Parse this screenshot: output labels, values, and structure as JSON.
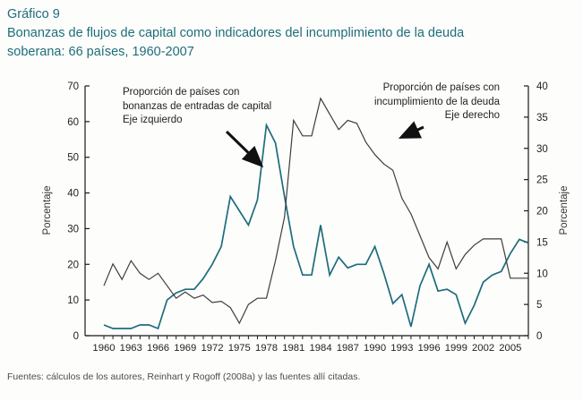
{
  "header": {
    "label": "Gráfico 9",
    "title_line1": "Bonanzas de flujos de capital como indicadores del incumplimiento de la deuda",
    "title_line2": "soberana: 66 países, 1960-2007"
  },
  "chart_data": {
    "type": "line",
    "title": "Bonanzas de flujos de capital como indicadores del incumplimiento de la deuda soberana: 66 países, 1960-2007",
    "grid": false,
    "legend_position": "annotations-with-arrows",
    "x": [
      1960,
      1961,
      1962,
      1963,
      1964,
      1965,
      1966,
      1967,
      1968,
      1969,
      1970,
      1971,
      1972,
      1973,
      1974,
      1975,
      1976,
      1977,
      1978,
      1979,
      1980,
      1981,
      1982,
      1983,
      1984,
      1985,
      1986,
      1987,
      1988,
      1989,
      1990,
      1991,
      1992,
      1993,
      1994,
      1995,
      1996,
      1997,
      1998,
      1999,
      2000,
      2001,
      2002,
      2003,
      2004,
      2005,
      2006,
      2007
    ],
    "x_tick_labels": [
      1960,
      1963,
      1966,
      1969,
      1972,
      1975,
      1978,
      1981,
      1984,
      1987,
      1990,
      1993,
      1996,
      1999,
      2002,
      2005
    ],
    "left_axis": {
      "label": "Porcentaje",
      "min": 0,
      "max": 70,
      "ticks": [
        0,
        10,
        20,
        30,
        40,
        50,
        60,
        70
      ]
    },
    "right_axis": {
      "label": "Porcentaje",
      "min": 0,
      "max": 40,
      "ticks": [
        0,
        5,
        10,
        15,
        20,
        25,
        30,
        35,
        40
      ]
    },
    "series": [
      {
        "name": "Proporción de países con bonanzas de entradas de capital",
        "axis": "left",
        "color": "#1e6c7c",
        "values": [
          3,
          2,
          2,
          2,
          3,
          3,
          2,
          10,
          12,
          13,
          13,
          16,
          20,
          25,
          39,
          35,
          31,
          38,
          59,
          54,
          39,
          25,
          17,
          17,
          31,
          17,
          22,
          19,
          20,
          20,
          25,
          17.5,
          9,
          11.5,
          2.5,
          14,
          20,
          12.5,
          13,
          11.5,
          3.5,
          8.5,
          15,
          17,
          18,
          23,
          27,
          26
        ]
      },
      {
        "name": "Proporción de países con incumplimiento de la deuda",
        "axis": "right",
        "color": "#3d3d3d",
        "values": [
          8,
          11.5,
          9,
          12,
          10,
          9,
          10,
          8,
          6,
          7,
          6,
          6.5,
          5.3,
          5.5,
          4.5,
          2,
          5,
          6,
          6,
          12,
          19,
          34.5,
          32,
          32,
          38,
          35.5,
          33,
          34.5,
          34,
          31,
          29,
          27.5,
          26.5,
          22,
          19.5,
          16,
          12.5,
          10.7,
          15,
          10.7,
          13,
          14.5,
          15.5,
          15.5,
          15.5,
          9.2,
          9.2,
          9.2
        ]
      }
    ],
    "annotations": [
      {
        "id": "bonanzas",
        "lines": [
          "Proporción de países con",
          "bonanzas de entradas de capital",
          "Eje izquierdo"
        ]
      },
      {
        "id": "incumplimiento",
        "lines": [
          "Proporción de países con",
          "incumplimiento de la deuda",
          "Eje derecho"
        ]
      }
    ]
  },
  "footer": {
    "source": "Fuentes: cálculos de los autores, Reinhart y Rogoff (2008a) y las fuentes allí citadas."
  }
}
